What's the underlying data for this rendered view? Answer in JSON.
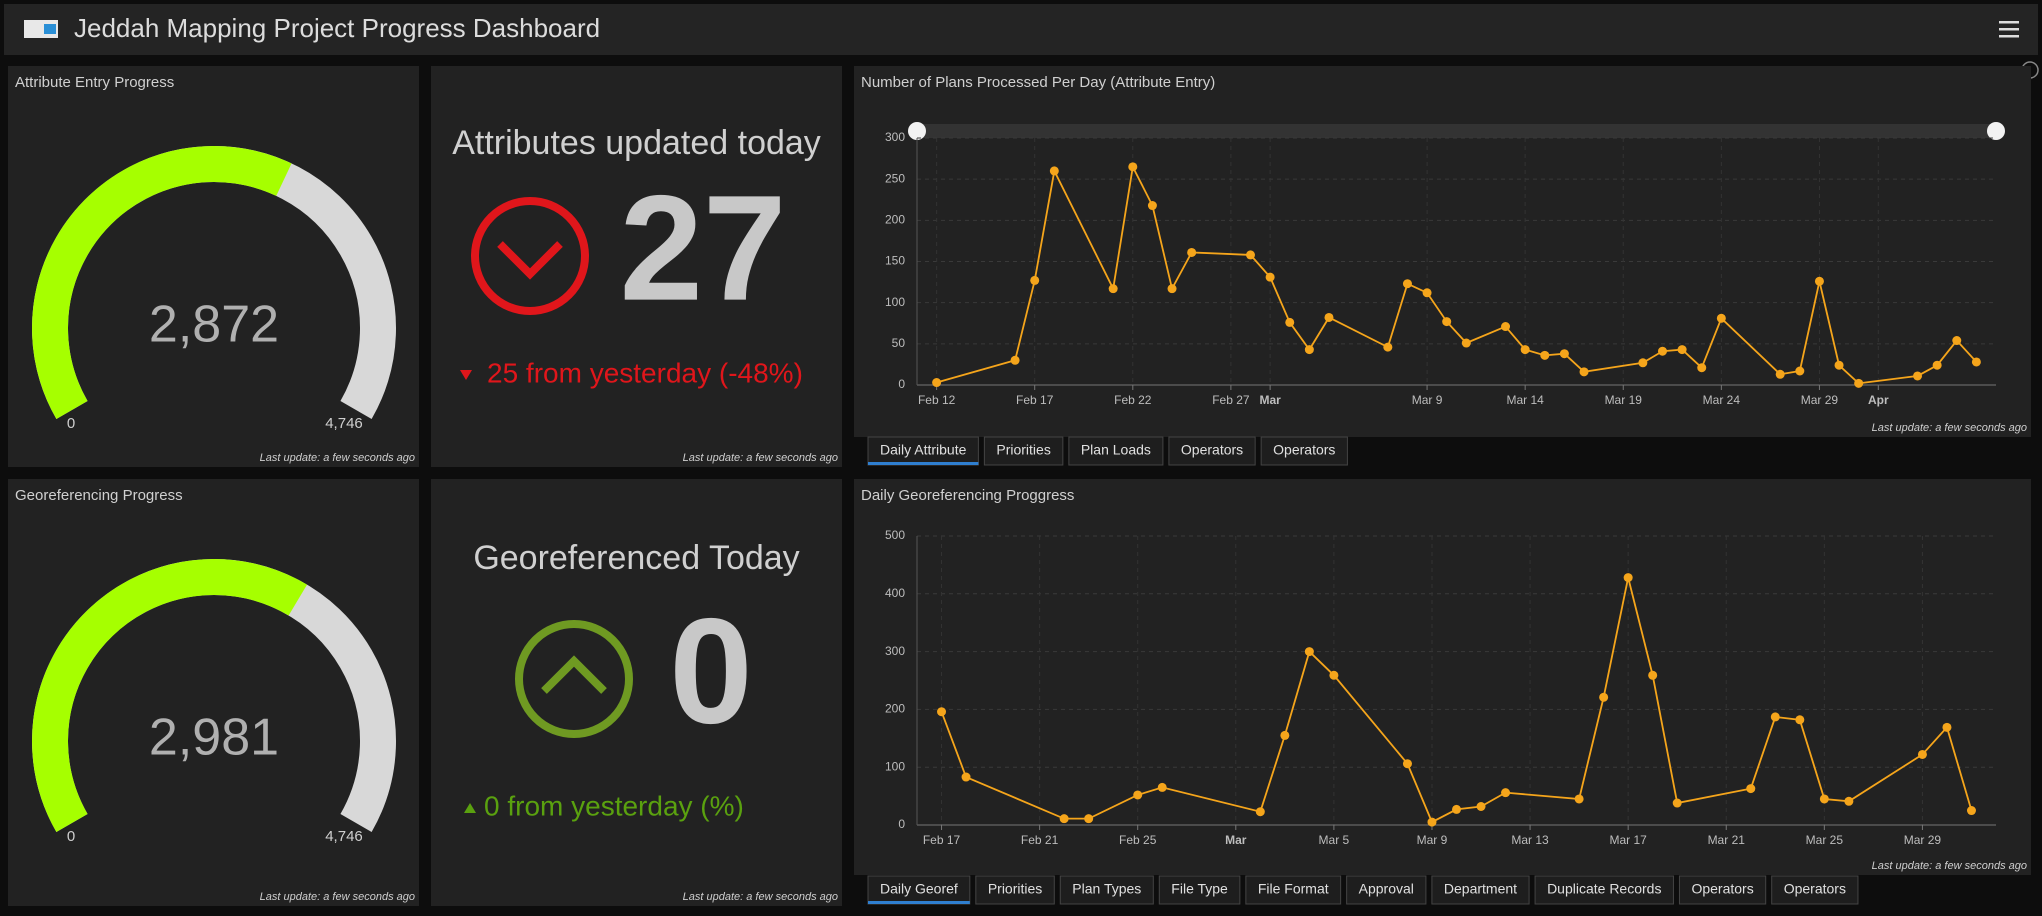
{
  "header": {
    "title": "Jeddah Mapping Project Progress Dashboard"
  },
  "gauges": [
    {
      "title": "Attribute Entry Progress",
      "value": 2872,
      "value_label": "2,872",
      "min": 0,
      "max": 4746,
      "max_label": "4,746",
      "color": "#a6ff00",
      "track_color": "#d8d8d8",
      "last_update": "Last update: a few seconds ago"
    },
    {
      "title": "Georeferencing Progress",
      "value": 2981,
      "value_label": "2,981",
      "min": 0,
      "max": 4746,
      "max_label": "4,746",
      "color": "#a6ff00",
      "track_color": "#d8d8d8",
      "last_update": "Last update: a few seconds ago"
    }
  ],
  "indicators": [
    {
      "title": "Attributes updated today",
      "value": 27,
      "direction": "down",
      "change_label": "25 from yesterday (-48%)",
      "color": "#e0161b",
      "icon_color": "#e0161b",
      "last_update": "Last update: a few seconds ago"
    },
    {
      "title": "Georeferenced Today",
      "value": 0,
      "direction": "up",
      "change_label": "0 from yesterday (%)",
      "color": "#5aa10f",
      "icon_color": "#6f9a22",
      "last_update": "Last update: a few seconds ago"
    }
  ],
  "chart_data": [
    {
      "type": "line",
      "title": "Number of Plans Processed Per Day (Attribute Entry)",
      "x": [
        "Feb 12",
        "Feb 16",
        "Feb 17",
        "Feb 18",
        "Feb 21",
        "Feb 22",
        "Feb 23",
        "Feb 24",
        "Feb 25",
        "Feb 28",
        "Mar 1",
        "Mar 2",
        "Mar 3",
        "Mar 4",
        "Mar 7",
        "Mar 8",
        "Mar 9",
        "Mar 10",
        "Mar 11",
        "Mar 13",
        "Mar 14",
        "Mar 15",
        "Mar 16",
        "Mar 17",
        "Mar 20",
        "Mar 21",
        "Mar 22",
        "Mar 23",
        "Mar 24",
        "Mar 27",
        "Mar 28",
        "Mar 29",
        "Mar 30",
        "Mar 31",
        "Apr 3",
        "Apr 4",
        "Apr 5",
        "Apr 6"
      ],
      "values": [
        3,
        30,
        127,
        260,
        117,
        265,
        218,
        117,
        161,
        158,
        131,
        76,
        43,
        82,
        46,
        123,
        112,
        77,
        51,
        71,
        43,
        36,
        38,
        16,
        27,
        41,
        43,
        21,
        81,
        13,
        17,
        126,
        24,
        2,
        11,
        24,
        54,
        28
      ],
      "color": "#f5a51b",
      "xlim": [
        "Feb 11",
        "Apr 7"
      ],
      "xticks": [
        "Feb 12",
        "Feb 17",
        "Feb 22",
        "Feb 27",
        {
          "value": "Mar 1",
          "label": "Mar"
        },
        "Mar 9",
        "Mar 14",
        "Mar 19",
        "Mar 24",
        "Mar 29",
        {
          "value": "Apr 1",
          "label": "Apr"
        }
      ],
      "ylim": [
        0,
        300
      ],
      "yticks": [
        0,
        50,
        100,
        150,
        200,
        250,
        300
      ],
      "grid": true,
      "last_update": "Last update: a few seconds ago",
      "tabs": [
        "Daily Attribute",
        "Priorities",
        "Plan Loads",
        "Operators",
        "Operators"
      ]
    },
    {
      "type": "line",
      "title": "Daily Georeferencing Proggress",
      "x": [
        "Feb 17",
        "Feb 18",
        "Feb 22",
        "Feb 23",
        "Feb 25",
        "Feb 26",
        "Mar 2",
        "Mar 3",
        "Mar 4",
        "Mar 5",
        "Mar 8",
        "Mar 9",
        "Mar 10",
        "Mar 11",
        "Mar 12",
        "Mar 15",
        "Mar 16",
        "Mar 17",
        "Mar 18",
        "Mar 19",
        "Mar 22",
        "Mar 23",
        "Mar 24",
        "Mar 25",
        "Mar 26",
        "Mar 29",
        "Mar 30",
        "Mar 31"
      ],
      "values": [
        196,
        83,
        11,
        11,
        52,
        65,
        23,
        155,
        300,
        259,
        106,
        5,
        27,
        32,
        56,
        45,
        221,
        428,
        259,
        38,
        63,
        187,
        182,
        45,
        41,
        122,
        169,
        25
      ],
      "color": "#f5a51b",
      "xlim": [
        "Feb 16",
        "Apr 1"
      ],
      "xticks": [
        "Feb 17",
        "Feb 21",
        "Feb 25",
        {
          "value": "Mar 1",
          "label": "Mar"
        },
        "Mar 5",
        "Mar 9",
        "Mar 13",
        "Mar 17",
        "Mar 21",
        "Mar 25",
        "Mar 29"
      ],
      "ylim": [
        0,
        500
      ],
      "yticks": [
        0,
        100,
        200,
        300,
        400,
        500
      ],
      "grid": true,
      "last_update": "Last update: a few seconds ago",
      "tabs": [
        "Daily Georef",
        "Priorities",
        "Plan Types",
        "File Type",
        "File Format",
        "Approval",
        "Department",
        "Duplicate Records",
        "Operators",
        "Operators"
      ]
    }
  ]
}
